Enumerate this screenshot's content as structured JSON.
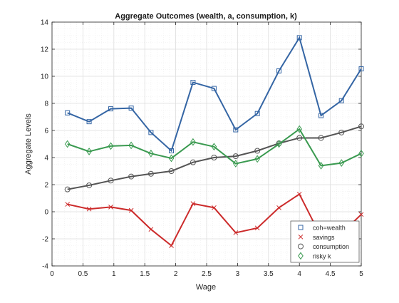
{
  "chart_data": {
    "type": "line",
    "title": "Aggregate Outcomes (wealth, a, consumption, k)",
    "xlabel": "Wage",
    "ylabel": "Aggregate Levels",
    "xlim": [
      0,
      5
    ],
    "ylim": [
      -4,
      14
    ],
    "xticks": [
      0,
      0.5,
      1,
      1.5,
      2,
      2.5,
      3,
      3.5,
      4,
      4.5,
      5
    ],
    "yticks": [
      -4,
      -2,
      0,
      2,
      4,
      6,
      8,
      10,
      12,
      14
    ],
    "grid": true,
    "minor_grid": true,
    "legend_position": "bottom-right",
    "x": [
      0.25,
      0.6,
      0.95,
      1.28,
      1.6,
      1.93,
      2.28,
      2.62,
      2.97,
      3.32,
      3.67,
      4.0,
      4.35,
      4.68,
      5.0
    ],
    "series": [
      {
        "name": "coh=wealth",
        "color": "#3465a4",
        "marker": "square",
        "values": [
          7.3,
          6.65,
          7.6,
          7.65,
          5.85,
          4.5,
          9.55,
          9.1,
          6.05,
          7.25,
          10.4,
          12.85,
          7.1,
          8.2,
          10.55
        ]
      },
      {
        "name": "savings",
        "color": "#cc2a2a",
        "marker": "x",
        "values": [
          0.55,
          0.2,
          0.35,
          0.1,
          -1.3,
          -2.5,
          0.6,
          0.3,
          -1.55,
          -1.2,
          0.3,
          1.3,
          -1.85,
          -1.6,
          -0.2
        ]
      },
      {
        "name": "consumption",
        "color": "#545454",
        "marker": "circle",
        "values": [
          1.65,
          1.95,
          2.3,
          2.6,
          2.8,
          3.0,
          3.65,
          4.0,
          4.1,
          4.5,
          5.05,
          5.45,
          5.45,
          5.85,
          6.3
        ]
      },
      {
        "name": "risky k",
        "color": "#3a9a50",
        "marker": "diamond",
        "values": [
          5.0,
          4.45,
          4.85,
          4.9,
          4.3,
          3.95,
          5.15,
          4.8,
          3.55,
          3.9,
          5.0,
          6.1,
          3.4,
          3.6,
          4.3
        ]
      }
    ]
  }
}
